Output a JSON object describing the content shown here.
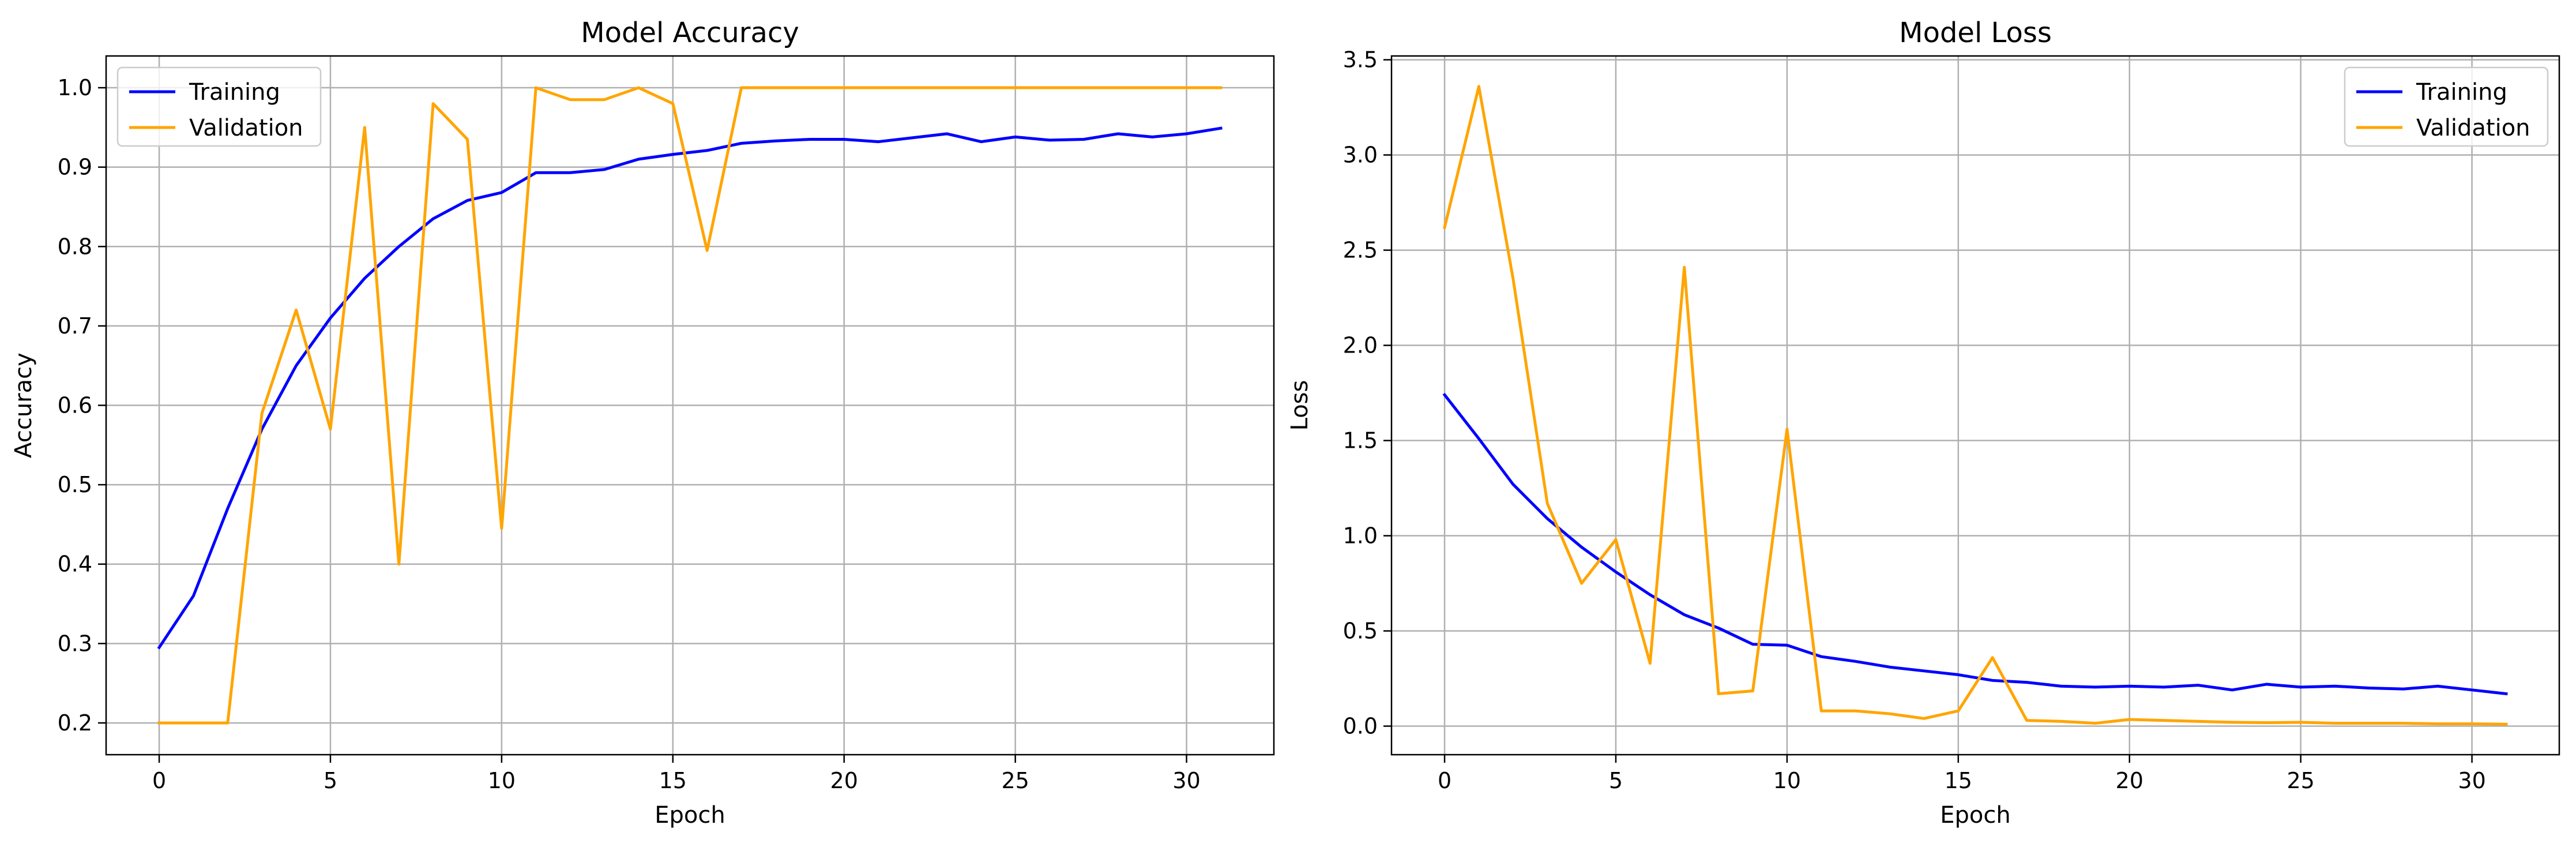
{
  "chart_data": [
    {
      "type": "line",
      "title": "Model Accuracy",
      "xlabel": "Epoch",
      "ylabel": "Accuracy",
      "xlim": [
        -1.55,
        32.55
      ],
      "ylim": [
        0.16,
        1.04
      ],
      "xticks": [
        0,
        5,
        10,
        15,
        20,
        25,
        30
      ],
      "xtick_labels": [
        "0",
        "5",
        "10",
        "15",
        "20",
        "25",
        "30"
      ],
      "yticks": [
        0.2,
        0.3,
        0.4,
        0.5,
        0.6,
        0.7,
        0.8,
        0.9,
        1.0
      ],
      "ytick_labels": [
        "0.2",
        "0.3",
        "0.4",
        "0.5",
        "0.6",
        "0.7",
        "0.8",
        "0.9",
        "1.0"
      ],
      "grid": true,
      "legend_position": "upper-left",
      "x": [
        0,
        1,
        2,
        3,
        4,
        5,
        6,
        7,
        8,
        9,
        10,
        11,
        12,
        13,
        14,
        15,
        16,
        17,
        18,
        19,
        20,
        21,
        22,
        23,
        24,
        25,
        26,
        27,
        28,
        29,
        30,
        31
      ],
      "series": [
        {
          "name": "Training",
          "color": "#0000ff",
          "values": [
            0.295,
            0.36,
            0.47,
            0.57,
            0.65,
            0.71,
            0.76,
            0.8,
            0.835,
            0.858,
            0.868,
            0.893,
            0.893,
            0.897,
            0.91,
            0.916,
            0.921,
            0.93,
            0.933,
            0.935,
            0.935,
            0.932,
            0.937,
            0.942,
            0.932,
            0.938,
            0.934,
            0.935,
            0.942,
            0.938,
            0.942,
            0.949
          ]
        },
        {
          "name": "Validation",
          "color": "#ffa500",
          "values": [
            0.2,
            0.2,
            0.2,
            0.59,
            0.72,
            0.57,
            0.95,
            0.4,
            0.98,
            0.935,
            0.445,
            1.0,
            0.985,
            0.985,
            1.0,
            0.98,
            0.795,
            1.0,
            1.0,
            1.0,
            1.0,
            1.0,
            1.0,
            1.0,
            1.0,
            1.0,
            1.0,
            1.0,
            1.0,
            1.0,
            1.0,
            1.0
          ]
        }
      ]
    },
    {
      "type": "line",
      "title": "Model Loss",
      "xlabel": "Epoch",
      "ylabel": "Loss",
      "xlim": [
        -1.55,
        32.55
      ],
      "ylim": [
        -0.15,
        3.52
      ],
      "xticks": [
        0,
        5,
        10,
        15,
        20,
        25,
        30
      ],
      "xtick_labels": [
        "0",
        "5",
        "10",
        "15",
        "20",
        "25",
        "30"
      ],
      "yticks": [
        0.0,
        0.5,
        1.0,
        1.5,
        2.0,
        2.5,
        3.0,
        3.5
      ],
      "ytick_labels": [
        "0.0",
        "0.5",
        "1.0",
        "1.5",
        "2.0",
        "2.5",
        "3.0",
        "3.5"
      ],
      "grid": true,
      "legend_position": "upper-right",
      "x": [
        0,
        1,
        2,
        3,
        4,
        5,
        6,
        7,
        8,
        9,
        10,
        11,
        12,
        13,
        14,
        15,
        16,
        17,
        18,
        19,
        20,
        21,
        22,
        23,
        24,
        25,
        26,
        27,
        28,
        29,
        30,
        31
      ],
      "series": [
        {
          "name": "Training",
          "color": "#0000ff",
          "values": [
            1.74,
            1.51,
            1.27,
            1.09,
            0.94,
            0.81,
            0.69,
            0.585,
            0.515,
            0.43,
            0.425,
            0.365,
            0.34,
            0.31,
            0.29,
            0.27,
            0.24,
            0.23,
            0.21,
            0.205,
            0.21,
            0.205,
            0.215,
            0.19,
            0.22,
            0.205,
            0.21,
            0.2,
            0.195,
            0.21,
            0.19,
            0.17
          ]
        },
        {
          "name": "Validation",
          "color": "#ffa500",
          "values": [
            2.62,
            3.36,
            2.35,
            1.17,
            0.75,
            0.98,
            0.33,
            2.41,
            0.17,
            0.185,
            1.56,
            0.08,
            0.08,
            0.065,
            0.04,
            0.08,
            0.36,
            0.03,
            0.025,
            0.015,
            0.035,
            0.03,
            0.025,
            0.02,
            0.018,
            0.02,
            0.015,
            0.015,
            0.015,
            0.012,
            0.012,
            0.01
          ]
        }
      ]
    }
  ]
}
